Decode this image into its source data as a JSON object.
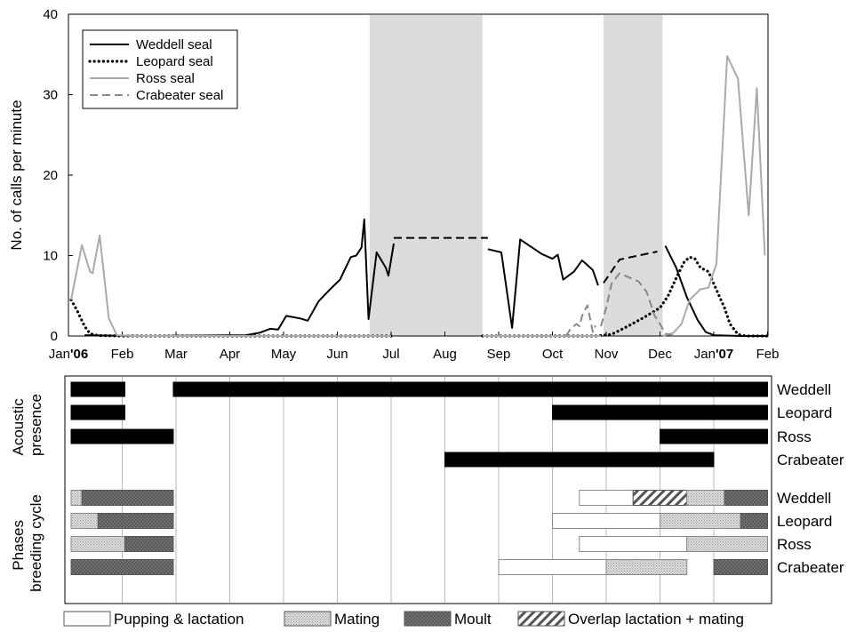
{
  "chart_data": [
    {
      "type": "line",
      "ylabel": "No. of calls per minute",
      "xlabel": "",
      "ylim": [
        0,
        40
      ],
      "yticks": [
        0,
        10,
        20,
        30,
        40
      ],
      "x_ticks": [
        {
          "m": 0,
          "label": "Jan",
          "suffix": "'06"
        },
        {
          "m": 1,
          "label": "Feb",
          "suffix": ""
        },
        {
          "m": 2,
          "label": "Mar",
          "suffix": ""
        },
        {
          "m": 3,
          "label": "Apr",
          "suffix": ""
        },
        {
          "m": 4,
          "label": "May",
          "suffix": ""
        },
        {
          "m": 5,
          "label": "Jun",
          "suffix": ""
        },
        {
          "m": 6,
          "label": "Jul",
          "suffix": ""
        },
        {
          "m": 7,
          "label": "Aug",
          "suffix": ""
        },
        {
          "m": 8,
          "label": "Sep",
          "suffix": ""
        },
        {
          "m": 9,
          "label": "Oct",
          "suffix": ""
        },
        {
          "m": 10,
          "label": "Nov",
          "suffix": ""
        },
        {
          "m": 11,
          "label": "Dec",
          "suffix": ""
        },
        {
          "m": 12,
          "label": "Jan",
          "suffix": "'07"
        },
        {
          "m": 13,
          "label": "Feb",
          "suffix": ""
        }
      ],
      "shaded_periods": [
        [
          5.6,
          7.7
        ],
        [
          9.95,
          11.05
        ]
      ],
      "legend": {
        "position": "top-left"
      },
      "series": [
        {
          "name": "Weddell seal",
          "color": "#000000",
          "style": "solid",
          "segments": [
            [
              [
                0.3,
                0.1
              ],
              [
                0.7,
                0.05
              ],
              [
                1.5,
                0.0
              ],
              [
                2.5,
                0.05
              ],
              [
                3.3,
                0.1
              ],
              [
                3.55,
                0.4
              ],
              [
                3.75,
                0.9
              ],
              [
                3.9,
                0.8
              ],
              [
                4.05,
                2.5
              ],
              [
                4.3,
                2.2
              ],
              [
                4.45,
                1.9
              ],
              [
                4.65,
                4.3
              ],
              [
                4.85,
                5.7
              ],
              [
                5.05,
                7.0
              ],
              [
                5.25,
                9.8
              ],
              [
                5.35,
                10.0
              ],
              [
                5.45,
                11.0
              ],
              [
                5.5,
                14.5
              ],
              [
                5.58,
                2.1
              ],
              [
                5.73,
                10.4
              ],
              [
                5.9,
                8.5
              ],
              [
                5.95,
                7.5
              ],
              [
                6.05,
                11.5
              ]
            ],
            [
              [
                7.8,
                10.8
              ],
              [
                8.05,
                10.4
              ],
              [
                8.25,
                1.0
              ],
              [
                8.4,
                12.0
              ],
              [
                8.8,
                10.2
              ],
              [
                9.0,
                9.6
              ],
              [
                9.1,
                10.1
              ],
              [
                9.2,
                7.0
              ],
              [
                9.4,
                8.0
              ],
              [
                9.55,
                9.4
              ],
              [
                9.75,
                8.2
              ],
              [
                9.85,
                6.3
              ]
            ],
            [
              [
                11.1,
                11.2
              ],
              [
                11.3,
                8.5
              ],
              [
                11.5,
                4.8
              ],
              [
                11.7,
                2.0
              ],
              [
                11.85,
                0.5
              ],
              [
                12.0,
                0.1
              ],
              [
                12.5,
                0.0
              ],
              [
                13.0,
                0.0
              ]
            ]
          ],
          "gaps": [
            [
              [
                6.05,
                12.2
              ],
              [
                7.8,
                12.2
              ]
            ],
            [
              [
                9.95,
                6.6
              ],
              [
                10.25,
                9.5
              ],
              [
                10.6,
                10.0
              ],
              [
                10.95,
                10.5
              ]
            ]
          ]
        },
        {
          "name": "Leopard seal",
          "color": "#000000",
          "style": "dotted",
          "segments": [
            [
              [
                0.05,
                4.5
              ],
              [
                0.15,
                3.3
              ],
              [
                0.3,
                1.2
              ],
              [
                0.4,
                0.3
              ],
              [
                0.55,
                0.05
              ],
              [
                1.0,
                0.0
              ],
              [
                2.0,
                0.0
              ],
              [
                6.0,
                0.0
              ]
            ],
            [
              [
                7.7,
                0.0
              ],
              [
                9.0,
                0.0
              ],
              [
                9.8,
                0.0
              ],
              [
                10.1,
                0.2
              ],
              [
                10.4,
                1.2
              ],
              [
                10.7,
                2.3
              ],
              [
                11.0,
                3.5
              ],
              [
                11.15,
                5.0
              ],
              [
                11.3,
                7.2
              ],
              [
                11.45,
                9.2
              ],
              [
                11.55,
                9.8
              ],
              [
                11.65,
                9.6
              ],
              [
                11.75,
                8.5
              ],
              [
                11.9,
                8.0
              ],
              [
                12.0,
                6.5
              ],
              [
                12.1,
                5.0
              ],
              [
                12.2,
                3.5
              ],
              [
                12.3,
                1.5
              ],
              [
                12.45,
                0.2
              ],
              [
                12.6,
                0.0
              ],
              [
                13.0,
                0.0
              ]
            ]
          ],
          "gaps": []
        },
        {
          "name": "Ross seal",
          "color": "#aaaaaa",
          "style": "solid",
          "segments": [
            [
              [
                0.05,
                4.5
              ],
              [
                0.25,
                11.3
              ],
              [
                0.4,
                8.0
              ],
              [
                0.45,
                7.8
              ],
              [
                0.58,
                12.5
              ],
              [
                0.75,
                2.2
              ],
              [
                0.9,
                0.1
              ],
              [
                1.2,
                0.0
              ],
              [
                6.0,
                0.0
              ]
            ],
            [
              [
                7.7,
                0.0
              ],
              [
                9.9,
                0.0
              ]
            ],
            [
              [
                11.05,
                0.0
              ],
              [
                11.25,
                0.4
              ],
              [
                11.4,
                1.5
              ],
              [
                11.55,
                4.5
              ],
              [
                11.75,
                5.8
              ],
              [
                11.9,
                6.0
              ],
              [
                12.05,
                9.0
              ],
              [
                12.25,
                34.8
              ],
              [
                12.45,
                32.0
              ],
              [
                12.65,
                15.0
              ],
              [
                12.8,
                30.8
              ],
              [
                12.95,
                10.0
              ]
            ]
          ],
          "gaps": []
        },
        {
          "name": "Crabeater seal",
          "color": "#888888",
          "style": "dashed",
          "segments": [
            [
              [
                9.25,
                0.0
              ],
              [
                9.35,
                1.0
              ],
              [
                9.45,
                1.5
              ],
              [
                9.5,
                1.2
              ],
              [
                9.55,
                2.5
              ],
              [
                9.65,
                3.8
              ],
              [
                9.75,
                0.5
              ],
              [
                9.8,
                1.3
              ]
            ],
            [
              [
                9.9,
                1.2
              ],
              [
                10.0,
                3.5
              ],
              [
                10.1,
                6.5
              ],
              [
                10.25,
                7.8
              ],
              [
                10.45,
                7.2
              ],
              [
                10.6,
                6.8
              ],
              [
                10.75,
                5.5
              ],
              [
                10.9,
                2.5
              ],
              [
                11.0,
                1.5
              ],
              [
                11.1,
                0.3
              ],
              [
                11.3,
                0.0
              ]
            ]
          ],
          "gaps": []
        }
      ]
    },
    {
      "type": "gantt",
      "groups": [
        {
          "label": "Acoustic presence",
          "rows": [
            {
              "label": "Weddell",
              "bars": [
                [
                  0.05,
                  1.05,
                  "presence"
                ],
                [
                  1.95,
                  13.0,
                  "presence"
                ]
              ]
            },
            {
              "label": "Leopard",
              "bars": [
                [
                  0.05,
                  1.05,
                  "presence"
                ],
                [
                  9.0,
                  13.0,
                  "presence"
                ]
              ]
            },
            {
              "label": "Ross",
              "bars": [
                [
                  0.05,
                  1.95,
                  "presence"
                ],
                [
                  11.0,
                  13.0,
                  "presence"
                ]
              ]
            },
            {
              "label": "Crabeater",
              "bars": [
                [
                  7.0,
                  12.0,
                  "presence"
                ]
              ]
            }
          ]
        },
        {
          "label": "Phases breeding cycle",
          "rows": [
            {
              "label": "Weddell",
              "bars": [
                [
                  0.05,
                  0.25,
                  "mating"
                ],
                [
                  0.25,
                  1.95,
                  "moult"
                ],
                [
                  9.5,
                  10.5,
                  "pupping"
                ],
                [
                  10.5,
                  11.5,
                  "overlap"
                ],
                [
                  11.5,
                  12.2,
                  "mating"
                ],
                [
                  12.2,
                  13.0,
                  "moult"
                ]
              ]
            },
            {
              "label": "Leopard",
              "bars": [
                [
                  0.05,
                  0.55,
                  "mating"
                ],
                [
                  0.55,
                  1.95,
                  "moult"
                ],
                [
                  9.0,
                  11.0,
                  "pupping"
                ],
                [
                  11.0,
                  12.5,
                  "mating"
                ],
                [
                  12.5,
                  13.0,
                  "moult"
                ]
              ]
            },
            {
              "label": "Ross",
              "bars": [
                [
                  0.05,
                  1.05,
                  "mating"
                ],
                [
                  1.05,
                  1.95,
                  "moult"
                ],
                [
                  9.5,
                  11.5,
                  "pupping"
                ],
                [
                  11.5,
                  13.0,
                  "mating"
                ]
              ]
            },
            {
              "label": "Crabeater",
              "bars": [
                [
                  0.05,
                  1.95,
                  "moult"
                ],
                [
                  8.0,
                  10.0,
                  "pupping"
                ],
                [
                  10.0,
                  11.5,
                  "mating"
                ],
                [
                  12.0,
                  13.0,
                  "moult"
                ]
              ]
            }
          ]
        }
      ],
      "legend_items": [
        {
          "key": "pupping",
          "label": "Pupping & lactation"
        },
        {
          "key": "mating",
          "label": "Mating"
        },
        {
          "key": "moult",
          "label": "Moult"
        },
        {
          "key": "overlap",
          "label": "Overlap lactation + mating"
        }
      ]
    }
  ]
}
